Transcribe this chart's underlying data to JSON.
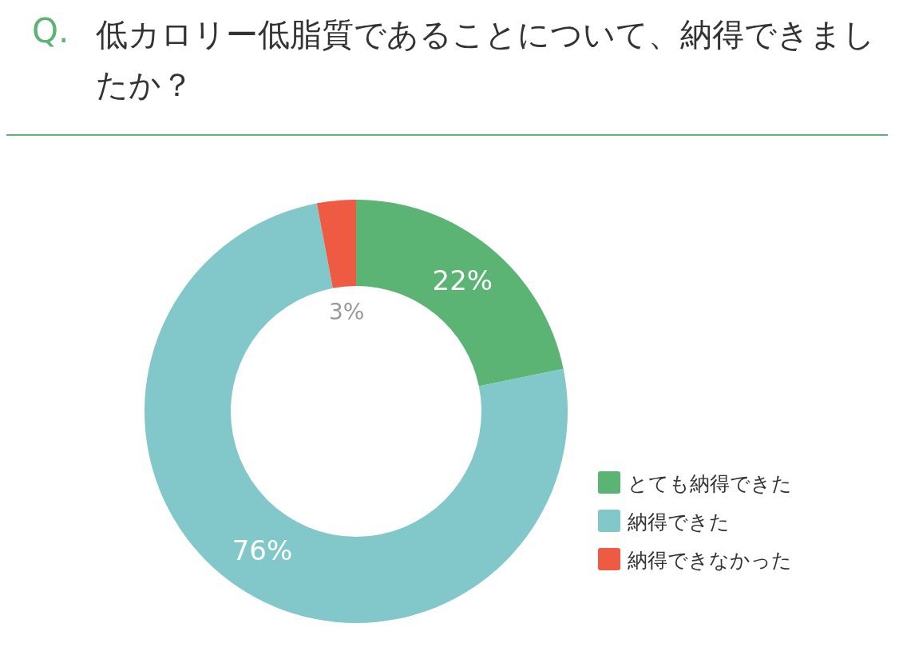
{
  "chart_data": {
    "type": "donut",
    "title": "低カロリー低脂質であることについて、納得できましたか？",
    "annotations": [
      "Q."
    ],
    "categories": [
      "とても納得できた",
      "納得できた",
      "納得できなかった"
    ],
    "values": [
      22,
      76,
      3
    ],
    "colors": [
      "#5bb374",
      "#82c8ca",
      "#ef5a43"
    ],
    "value_labels": [
      "22%",
      "76%",
      "3%"
    ],
    "legend": "bottom right"
  }
}
